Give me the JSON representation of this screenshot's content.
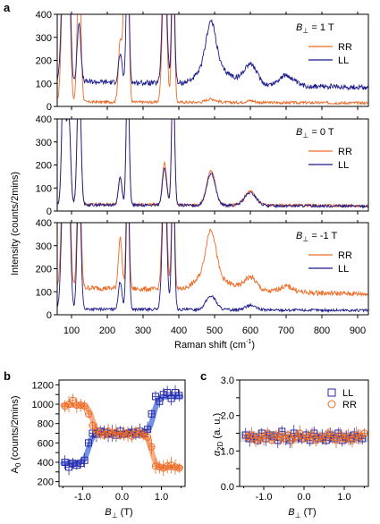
{
  "colors": {
    "RR": "#ee6a24",
    "LL": "#1a1a8c",
    "LL_fit": "#5b7fe0",
    "RR_fit": "#f4a070",
    "band": "#cfcfcf"
  },
  "panel_letters": {
    "a": "a",
    "b": "b",
    "c": "c"
  },
  "chart_data": [
    {
      "id": "a",
      "type": "line",
      "xlabel": "Raman shift (cm",
      "xlabel_sup": "-1",
      "xlabel_close": ")",
      "ylabel": "Intensity (counts/2mins)",
      "xlim": [
        60,
        930
      ],
      "ylim": [
        0,
        400
      ],
      "xticks": [
        100,
        200,
        300,
        400,
        500,
        600,
        700,
        800,
        900
      ],
      "yticks": [
        0,
        100,
        200,
        300,
        400
      ],
      "legend_placement": "top-right",
      "subpanels": [
        {
          "field": "B",
          "field_sub": "⊥",
          "field_rest": " = 1 T",
          "series": [
            {
              "name": "RR",
              "baseline": 20,
              "peaks": [
                [
                  78,
                  6,
                  600
                ],
                [
                  92,
                  5,
                  600
                ],
                [
                  121,
                  5,
                  600
                ],
                [
                  236,
                  5,
                  260
                ],
                [
                  250,
                  5,
                  600
                ],
                [
                  257,
                  4,
                  600
                ],
                [
                  360,
                  6,
                  600
                ],
                [
                  384,
                  4,
                  600
                ],
                [
                  490,
                  14,
                  15
                ],
                [
                  600,
                  12,
                  8
                ]
              ]
            },
            {
              "name": "LL",
              "baseline": 110,
              "peaks": [
                [
                  78,
                  6,
                  600
                ],
                [
                  92,
                  5,
                  600
                ],
                [
                  121,
                  5,
                  260
                ],
                [
                  236,
                  5,
                  120
                ],
                [
                  257,
                  4,
                  600
                ],
                [
                  360,
                  6,
                  600
                ],
                [
                  384,
                  4,
                  600
                ],
                [
                  490,
                  14,
                  200
                ],
                [
                  480,
                  30,
                  60
                ],
                [
                  600,
                  18,
                  90
                ],
                [
                  530,
                  30,
                  40
                ],
                [
                  700,
                  20,
                  45
                ]
              ]
            }
          ]
        },
        {
          "field": "B",
          "field_sub": "⊥",
          "field_rest": " = 0 T",
          "series": [
            {
              "name": "RR",
              "baseline": 30,
              "peaks": [
                [
                  78,
                  5,
                  600
                ],
                [
                  92,
                  5,
                  400
                ],
                [
                  121,
                  5,
                  600
                ],
                [
                  236,
                  5,
                  120
                ],
                [
                  257,
                  4,
                  600
                ],
                [
                  360,
                  6,
                  180
                ],
                [
                  384,
                  4,
                  600
                ],
                [
                  490,
                  12,
                  150
                ],
                [
                  600,
                  16,
                  60
                ]
              ]
            },
            {
              "name": "LL",
              "baseline": 28,
              "peaks": [
                [
                  78,
                  5,
                  600
                ],
                [
                  92,
                  5,
                  400
                ],
                [
                  121,
                  5,
                  600
                ],
                [
                  236,
                  5,
                  120
                ],
                [
                  257,
                  4,
                  600
                ],
                [
                  360,
                  6,
                  160
                ],
                [
                  384,
                  4,
                  600
                ],
                [
                  490,
                  12,
                  140
                ],
                [
                  600,
                  16,
                  55
                ]
              ]
            }
          ]
        },
        {
          "field": "B",
          "field_sub": "⊥",
          "field_rest": " = -1 T",
          "series": [
            {
              "name": "RR",
              "baseline": 120,
              "peaks": [
                [
                  78,
                  6,
                  600
                ],
                [
                  92,
                  5,
                  600
                ],
                [
                  121,
                  5,
                  600
                ],
                [
                  236,
                  5,
                  220
                ],
                [
                  257,
                  4,
                  600
                ],
                [
                  360,
                  6,
                  600
                ],
                [
                  384,
                  4,
                  600
                ],
                [
                  490,
                  14,
                  200
                ],
                [
                  475,
                  30,
                  60
                ],
                [
                  600,
                  18,
                  60
                ],
                [
                  530,
                  30,
                  30
                ],
                [
                  700,
                  20,
                  25
                ]
              ]
            },
            {
              "name": "LL",
              "baseline": 25,
              "peaks": [
                [
                  78,
                  6,
                  600
                ],
                [
                  92,
                  5,
                  600
                ],
                [
                  121,
                  5,
                  600
                ],
                [
                  236,
                  5,
                  120
                ],
                [
                  257,
                  4,
                  600
                ],
                [
                  360,
                  6,
                  600
                ],
                [
                  384,
                  4,
                  600
                ],
                [
                  490,
                  14,
                  60
                ],
                [
                  600,
                  14,
                  20
                ]
              ]
            }
          ]
        }
      ]
    },
    {
      "id": "b",
      "type": "scatter",
      "xlabel": "B",
      "xlabel_sub": "⊥",
      "xlabel_rest": " (T)",
      "ylabel": "A",
      "ylabel_sub": "0",
      "ylabel_rest": " (counts/2mins)",
      "xlim": [
        -1.6,
        1.6
      ],
      "ylim": [
        150,
        1250
      ],
      "xticks": [
        -1.0,
        0.0,
        1.0
      ],
      "xticklabels": [
        "-1.0",
        "0.0",
        "1.0"
      ],
      "yticks": [
        200,
        300,
        400,
        500,
        600,
        700,
        800,
        900,
        1000,
        1100,
        1200
      ],
      "yticklabels": [
        "200",
        "",
        "400",
        "",
        "600",
        "",
        "800",
        "",
        "1000",
        "",
        "1200"
      ],
      "series": [
        {
          "name": "LL",
          "marker": "square",
          "x": [
            -1.45,
            -1.35,
            -1.25,
            -1.15,
            -1.05,
            -0.95,
            -0.85,
            -0.75,
            -0.65,
            -0.55,
            -0.45,
            -0.35,
            -0.25,
            -0.15,
            -0.05,
            0.05,
            0.15,
            0.25,
            0.35,
            0.45,
            0.55,
            0.65,
            0.75,
            0.85,
            0.95,
            1.05,
            1.15,
            1.25,
            1.35,
            1.45
          ],
          "y": [
            400,
            350,
            390,
            370,
            390,
            420,
            600,
            700,
            690,
            720,
            710,
            690,
            700,
            680,
            720,
            690,
            700,
            710,
            690,
            720,
            700,
            740,
            900,
            1080,
            1030,
            1100,
            1120,
            1060,
            1120,
            1090
          ]
        },
        {
          "name": "RR",
          "marker": "circle",
          "x": [
            -1.45,
            -1.35,
            -1.25,
            -1.15,
            -1.05,
            -0.95,
            -0.85,
            -0.75,
            -0.65,
            -0.55,
            -0.45,
            -0.35,
            -0.25,
            -0.15,
            -0.05,
            0.05,
            0.15,
            0.25,
            0.35,
            0.45,
            0.55,
            0.65,
            0.75,
            0.85,
            0.95,
            1.05,
            1.15,
            1.25,
            1.35,
            1.45
          ],
          "y": [
            980,
            1000,
            1040,
            990,
            990,
            980,
            900,
            780,
            720,
            700,
            680,
            720,
            700,
            710,
            680,
            700,
            690,
            670,
            720,
            700,
            680,
            660,
            560,
            360,
            350,
            340,
            360,
            370,
            350,
            340
          ]
        }
      ],
      "fits": [
        {
          "name": "LL",
          "y_low": 390,
          "y_mid": 700,
          "y_high": 1080,
          "x_step1": -0.85,
          "x_step2": 0.8,
          "width": 0.06
        },
        {
          "name": "RR",
          "y_low": 345,
          "y_mid": 690,
          "y_high": 990,
          "x_step1": -0.75,
          "x_step2": 0.75,
          "width": 0.06
        }
      ]
    },
    {
      "id": "c",
      "type": "scatter",
      "xlabel": "B",
      "xlabel_sub": "⊥",
      "xlabel_rest": " (T)",
      "ylabel": "α",
      "ylabel_sub": "2D",
      "ylabel_rest": " (a. u.)",
      "xlim": [
        -1.6,
        1.6
      ],
      "ylim": [
        0,
        3.0
      ],
      "xticks": [
        -1.0,
        0.0,
        1.0
      ],
      "xticklabels": [
        "-1.0",
        "0.0",
        "1.0"
      ],
      "yticks": [
        0,
        0.5,
        1.0,
        1.5,
        2.0,
        2.5,
        3.0
      ],
      "yticklabels": [
        "0.0",
        "",
        "1.0",
        "",
        "2.0",
        "",
        "3.0"
      ],
      "band": [
        1.25,
        1.55
      ],
      "legend_placement": "top-right",
      "series": [
        {
          "name": "LL",
          "marker": "square",
          "x": [
            -1.45,
            -1.35,
            -1.25,
            -1.15,
            -1.05,
            -0.95,
            -0.85,
            -0.75,
            -0.65,
            -0.55,
            -0.45,
            -0.35,
            -0.25,
            -0.15,
            -0.05,
            0.05,
            0.15,
            0.25,
            0.35,
            0.45,
            0.55,
            0.65,
            0.75,
            0.85,
            0.95,
            1.05,
            1.15,
            1.25,
            1.35,
            1.45
          ],
          "y": [
            1.45,
            1.35,
            1.4,
            1.3,
            1.5,
            1.35,
            1.45,
            1.4,
            1.3,
            1.55,
            1.35,
            1.3,
            1.5,
            1.4,
            1.35,
            1.45,
            1.3,
            1.5,
            1.35,
            1.4,
            1.3,
            1.45,
            1.35,
            1.5,
            1.3,
            1.4,
            1.35,
            1.45,
            1.4,
            1.35
          ]
        },
        {
          "name": "RR",
          "marker": "circle",
          "x": [
            -1.4,
            -1.3,
            -1.2,
            -1.1,
            -1.0,
            -0.9,
            -0.8,
            -0.7,
            -0.6,
            -0.5,
            -0.4,
            -0.3,
            -0.2,
            -0.1,
            0.0,
            0.1,
            0.2,
            0.3,
            0.4,
            0.5,
            0.6,
            0.7,
            0.8,
            0.9,
            1.0,
            1.1,
            1.2,
            1.3,
            1.4,
            1.5
          ],
          "y": [
            1.4,
            1.45,
            1.3,
            1.4,
            1.35,
            1.5,
            1.3,
            1.45,
            1.4,
            1.35,
            1.45,
            1.3,
            1.4,
            1.5,
            1.35,
            1.4,
            1.45,
            1.3,
            1.4,
            1.35,
            1.5,
            1.4,
            1.3,
            1.45,
            1.35,
            1.4,
            1.3,
            1.45,
            1.4,
            1.5
          ]
        }
      ]
    }
  ]
}
